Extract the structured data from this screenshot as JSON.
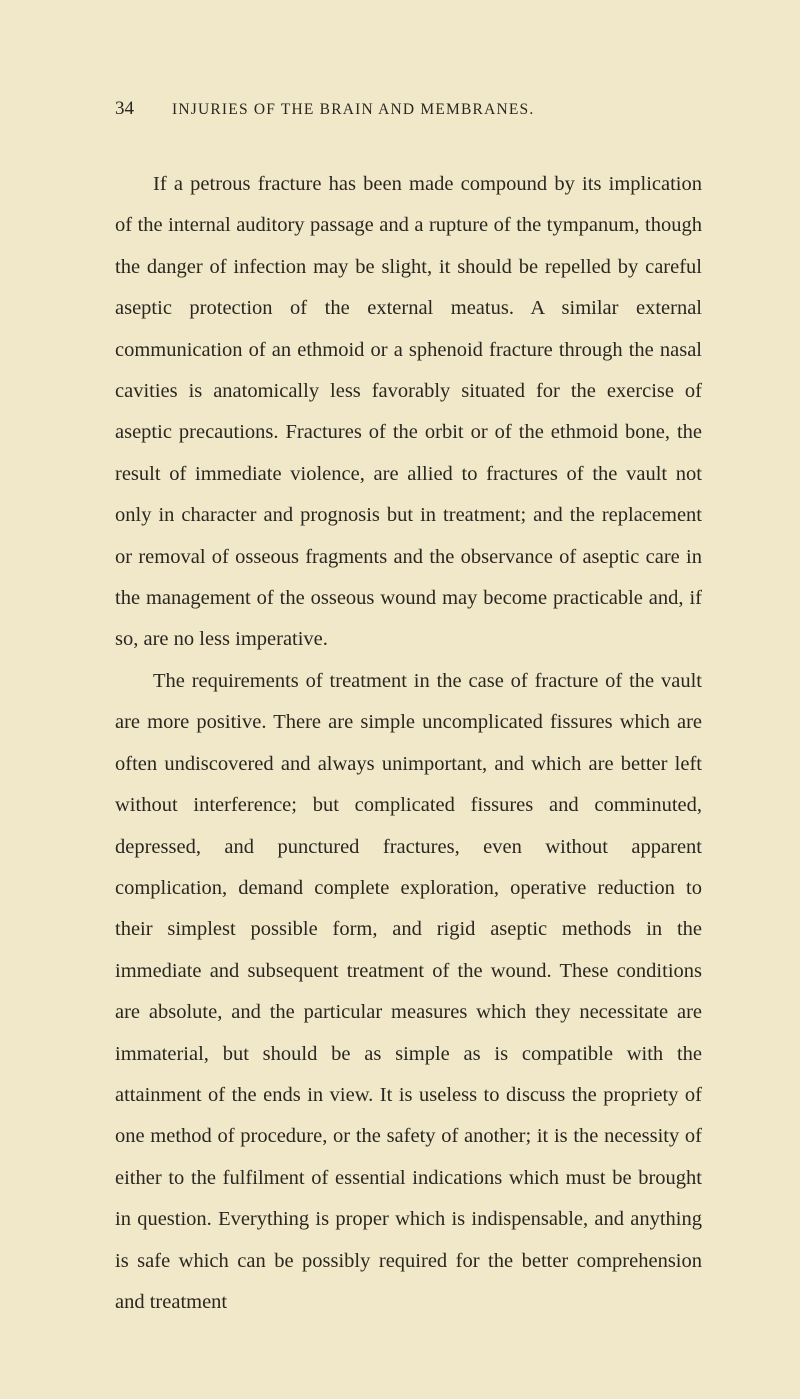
{
  "page_number": "34",
  "chapter_title": "INJURIES OF THE BRAIN AND MEMBRANES.",
  "paragraphs": [
    "If a petrous fracture has been made compound by its implication of the internal auditory passage and a rupture of the tympanum, though the danger of infection may be slight, it should be repelled by careful aseptic protection of the external meatus. A similar external communication of an ethmoid or a sphenoid fracture through the nasal cavities is anatomically less favorably situated for the exercise of aseptic precautions. Fractures of the orbit or of the ethmoid bone, the result of immediate violence, are allied to fractures of the vault not only in character and prognosis but in treatment; and the replacement or removal of osseous fragments and the observance of aseptic care in the management of the osseous wound may become practicable and, if so, are no less imperative.",
    "The requirements of treatment in the case of fracture of the vault are more positive. There are simple uncomplicated fissures which are often undiscovered and always unimportant, and which are better left without interference; but complicated fissures and comminuted, depressed, and punctured fractures, even without apparent complication, demand complete exploration, operative reduction to their simplest possible form, and rigid aseptic methods in the immediate and subsequent treatment of the wound. These conditions are absolute, and the particular measures which they necessitate are immaterial, but should be as simple as is compatible with the attainment of the ends in view. It is useless to discuss the propriety of one method of procedure, or the safety of another; it is the necessity of either to the fulfilment of essential indications which must be brought in question. Everything is proper which is indispensable, and anything is safe which can be possibly required for the better comprehension and treatment"
  ]
}
